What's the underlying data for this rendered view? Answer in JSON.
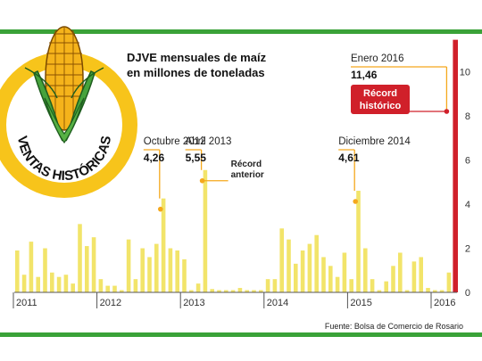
{
  "chart_data": {
    "type": "bar",
    "title_lines": [
      "DJVE mensuales de maíz",
      "en millones de toneladas"
    ],
    "ylim": [
      0,
      11
    ],
    "yticks": [
      "0",
      "2",
      "4",
      "6",
      "8",
      "10"
    ],
    "ytick_values": [
      0,
      2,
      4,
      6,
      8,
      10
    ],
    "xticks": [
      "2011",
      "2012",
      "2013",
      "2014",
      "2015",
      "2016"
    ],
    "values": [
      1.9,
      0.8,
      2.3,
      0.7,
      2.0,
      0.9,
      0.7,
      0.8,
      0.4,
      3.1,
      2.1,
      2.5,
      0.6,
      0.3,
      0.3,
      0.1,
      2.4,
      0.6,
      2.0,
      1.6,
      2.2,
      4.26,
      2.0,
      1.9,
      1.5,
      0.1,
      0.4,
      5.55,
      0.15,
      0.1,
      0.1,
      0.1,
      0.2,
      0.1,
      0.1,
      0.1,
      0.6,
      0.6,
      2.9,
      2.4,
      1.3,
      1.9,
      2.2,
      2.6,
      1.6,
      1.2,
      0.7,
      1.8,
      0.6,
      4.61,
      2.0,
      0.6,
      0.1,
      0.5,
      1.2,
      1.8,
      0.1,
      1.4,
      1.6,
      0.2,
      0.1,
      0.1,
      0.9,
      11.46
    ],
    "annotations": [
      {
        "index": 21,
        "label": "Octubre 2012",
        "value": "4,26"
      },
      {
        "index": 27,
        "label": "Abril 2013",
        "value": "5,55",
        "note_lines": [
          "Récord",
          "anterior"
        ]
      },
      {
        "index": 49,
        "label": "Diciembre 2014",
        "value": "4,61"
      },
      {
        "index": 63,
        "label": "Enero 2016",
        "value": "11,46",
        "badge_lines": [
          "Récord",
          "histórico"
        ]
      }
    ],
    "source": "Fuente: Bolsa de Comercio de Rosario",
    "logo_text": "VENTAS HISTÓRICAS",
    "colors": {
      "bar": "#f2e46a",
      "record": "#d0202a",
      "accent": "#f5a81c",
      "frame": "#3aa238",
      "logo_ring": "#f7c41b",
      "corn_kernel": "#f5b31b",
      "husk": "#46a33c",
      "text": "#111111"
    }
  }
}
